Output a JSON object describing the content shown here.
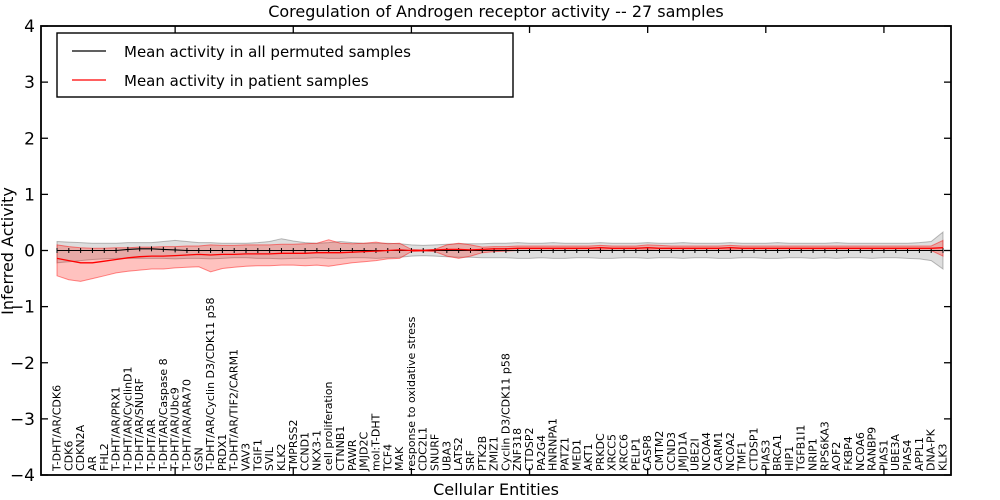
{
  "chart_data": {
    "type": "line",
    "title": "Coregulation of Androgen receptor activity -- 27 samples",
    "xlabel": "Cellular Entities",
    "ylabel": "Inferred Activity",
    "ylim": [
      -4,
      4
    ],
    "yticks": [
      4,
      3,
      2,
      1,
      0,
      -1,
      -2,
      -3,
      -4
    ],
    "ytick_labels": [
      "4",
      "3",
      "2",
      "1",
      "0",
      "−1",
      "−2",
      "−3",
      "−4"
    ],
    "xtick_positions": [
      10,
      20,
      30,
      40,
      50,
      60,
      70
    ],
    "grid": false,
    "legend_position": "upper left",
    "frame_color": "#000000",
    "background_color": "#ffffff",
    "categories": [
      "T-DHT/AR/CDK6",
      "CDK6",
      "CDKN2A",
      "AR",
      "FHL2",
      "T-DHT/AR/PRX1",
      "T-DHT/AR/CyclinD1",
      "T-DHT/AR/SNURF",
      "T-DHT/AR",
      "T-DHT/AR/Caspase 8",
      "T-DHT/AR/Ubc9",
      "T-DHT/AR/ARA70",
      "GSN",
      "T-DHT/AR/Cyclin D3/CDK11 p58",
      "PRDX1",
      "T-DHT/AR/TIF2/CARM1",
      "VAV3",
      "TGIF1",
      "SVIL",
      "KLK2",
      "TMPRSS2",
      "CCND1",
      "NKX3-1",
      "cell proliferation",
      "CTNNB1",
      "PAWR",
      "JMJD2C",
      "mol:T-DHT",
      "TCF4",
      "MAK",
      "response to oxidative stress",
      "CDC2L1",
      "SNURF",
      "UBA3",
      "LATS2",
      "SRF",
      "PTK2B",
      "ZMIZ1",
      "Cyclin D3/CDK11 p58",
      "ZNF318",
      "CTDSP2",
      "PA2G4",
      "HNRNPA1",
      "PATZ1",
      "MED1",
      "AKT1",
      "PRKDC",
      "XRCC5",
      "XRCC6",
      "PELP1",
      "CASP8",
      "CMTM2",
      "CCND3",
      "JMJD1A",
      "UBE2I",
      "NCOA4",
      "CARM1",
      "NCOA2",
      "TMF1",
      "CTDSP1",
      "PIAS3",
      "BRCA1",
      "HIP1",
      "TGFB1I1",
      "NRIP1",
      "RPS6KA3",
      "AOF2",
      "FKBP4",
      "NCOA6",
      "RANBP9",
      "PIAS1",
      "UBE3A",
      "PIAS4",
      "APPL1",
      "DNA-PK",
      "KLK3"
    ],
    "series": [
      {
        "name": "Mean activity in all permuted samples",
        "color": "#000000",
        "band_fill": "rgba(0,0,0,0.13)",
        "band_edge": "rgba(0,0,0,0.25)",
        "values": [
          0,
          0,
          0,
          0,
          0,
          0,
          0.02,
          0.03,
          0.03,
          0.02,
          0.01,
          0,
          0,
          0,
          0,
          0,
          0,
          0,
          0,
          0,
          0,
          0,
          0,
          0,
          0,
          0,
          0,
          0,
          0,
          0,
          0,
          0,
          0,
          0,
          0,
          0,
          0,
          0,
          0,
          0,
          0,
          0,
          0,
          0,
          0,
          0,
          0,
          0,
          0,
          0,
          0,
          0,
          0,
          0,
          0,
          0,
          0,
          0,
          0,
          0,
          0,
          0,
          0,
          0,
          0,
          0,
          0,
          0,
          0,
          0,
          0,
          0,
          0,
          0,
          0,
          0
        ],
        "band_upper": [
          0.16,
          0.15,
          0.14,
          0.13,
          0.13,
          0.13,
          0.14,
          0.14,
          0.14,
          0.16,
          0.18,
          0.16,
          0.14,
          0.14,
          0.13,
          0.13,
          0.13,
          0.14,
          0.16,
          0.21,
          0.17,
          0.14,
          0.13,
          0.14,
          0.16,
          0.14,
          0.13,
          0.13,
          0.13,
          0.12,
          0.1,
          0.09,
          0.1,
          0.11,
          0.12,
          0.12,
          0.12,
          0.13,
          0.13,
          0.14,
          0.13,
          0.13,
          0.14,
          0.13,
          0.13,
          0.13,
          0.14,
          0.13,
          0.13,
          0.13,
          0.14,
          0.13,
          0.13,
          0.14,
          0.13,
          0.13,
          0.13,
          0.14,
          0.13,
          0.13,
          0.13,
          0.14,
          0.13,
          0.13,
          0.13,
          0.13,
          0.14,
          0.13,
          0.13,
          0.13,
          0.13,
          0.13,
          0.13,
          0.14,
          0.16,
          0.33
        ],
        "band_lower": [
          -0.22,
          -0.2,
          -0.18,
          -0.16,
          -0.15,
          -0.14,
          -0.14,
          -0.14,
          -0.14,
          -0.14,
          -0.15,
          -0.14,
          -0.14,
          -0.15,
          -0.14,
          -0.13,
          -0.13,
          -0.14,
          -0.14,
          -0.15,
          -0.14,
          -0.14,
          -0.13,
          -0.14,
          -0.14,
          -0.13,
          -0.13,
          -0.14,
          -0.13,
          -0.12,
          -0.1,
          -0.09,
          -0.1,
          -0.11,
          -0.12,
          -0.12,
          -0.13,
          -0.13,
          -0.13,
          -0.14,
          -0.14,
          -0.13,
          -0.14,
          -0.14,
          -0.13,
          -0.13,
          -0.14,
          -0.14,
          -0.13,
          -0.13,
          -0.14,
          -0.13,
          -0.13,
          -0.14,
          -0.13,
          -0.13,
          -0.14,
          -0.14,
          -0.13,
          -0.13,
          -0.14,
          -0.14,
          -0.13,
          -0.13,
          -0.14,
          -0.13,
          -0.14,
          -0.13,
          -0.13,
          -0.14,
          -0.13,
          -0.13,
          -0.14,
          -0.15,
          -0.18,
          -0.33
        ]
      },
      {
        "name": "Mean activity in patient samples",
        "color": "#ff0000",
        "band_fill": "rgba(255,30,20,0.27)",
        "band_edge": "rgba(255,0,0,0.45)",
        "values": [
          -0.14,
          -0.18,
          -0.22,
          -0.22,
          -0.19,
          -0.16,
          -0.13,
          -0.11,
          -0.1,
          -0.1,
          -0.09,
          -0.08,
          -0.07,
          -0.08,
          -0.07,
          -0.07,
          -0.06,
          -0.06,
          -0.06,
          -0.05,
          -0.05,
          -0.05,
          -0.04,
          -0.04,
          -0.04,
          -0.03,
          -0.02,
          -0.01,
          0,
          0.01,
          0,
          0,
          0.01,
          0.02,
          0.02,
          0.01,
          0.02,
          0.03,
          0.03,
          0.04,
          0.04,
          0.04,
          0.04,
          0.04,
          0.04,
          0.04,
          0.05,
          0.04,
          0.04,
          0.04,
          0.05,
          0.04,
          0.04,
          0.04,
          0.04,
          0.04,
          0.04,
          0.05,
          0.04,
          0.04,
          0.04,
          0.04,
          0.04,
          0.04,
          0.04,
          0.04,
          0.04,
          0.04,
          0.04,
          0.04,
          0.04,
          0.04,
          0.04,
          0.04,
          0.04,
          0.05
        ],
        "band_upper": [
          0.1,
          0.07,
          0.05,
          0.04,
          0.04,
          0.05,
          0.05,
          0.06,
          0.06,
          0.07,
          0.07,
          0.08,
          0.08,
          0.1,
          0.09,
          0.09,
          0.1,
          0.1,
          0.1,
          0.11,
          0.11,
          0.12,
          0.13,
          0.19,
          0.13,
          0.12,
          0.13,
          0.15,
          0.12,
          0.13,
          0.02,
          0.01,
          0.02,
          0.1,
          0.13,
          0.1,
          0.06,
          0.07,
          0.07,
          0.08,
          0.08,
          0.08,
          0.08,
          0.08,
          0.08,
          0.08,
          0.09,
          0.08,
          0.08,
          0.08,
          0.1,
          0.09,
          0.08,
          0.08,
          0.08,
          0.08,
          0.08,
          0.09,
          0.08,
          0.08,
          0.08,
          0.08,
          0.08,
          0.08,
          0.08,
          0.08,
          0.08,
          0.08,
          0.08,
          0.08,
          0.08,
          0.08,
          0.08,
          0.08,
          0.08,
          0.18
        ],
        "band_lower": [
          -0.45,
          -0.52,
          -0.55,
          -0.5,
          -0.45,
          -0.4,
          -0.37,
          -0.35,
          -0.33,
          -0.33,
          -0.31,
          -0.3,
          -0.29,
          -0.38,
          -0.32,
          -0.3,
          -0.28,
          -0.27,
          -0.27,
          -0.26,
          -0.26,
          -0.27,
          -0.26,
          -0.28,
          -0.25,
          -0.22,
          -0.2,
          -0.18,
          -0.15,
          -0.14,
          -0.02,
          -0.01,
          -0.02,
          -0.1,
          -0.14,
          -0.1,
          -0.04,
          -0.02,
          -0.01,
          0,
          0,
          0,
          0,
          0,
          0,
          0,
          0.01,
          0,
          0,
          0,
          0.01,
          0,
          0,
          0,
          0,
          0,
          0,
          0.01,
          0,
          0,
          0,
          0,
          0,
          0,
          0,
          0,
          0,
          0,
          0,
          0,
          0,
          0,
          0,
          0,
          0,
          -0.1
        ]
      }
    ]
  }
}
